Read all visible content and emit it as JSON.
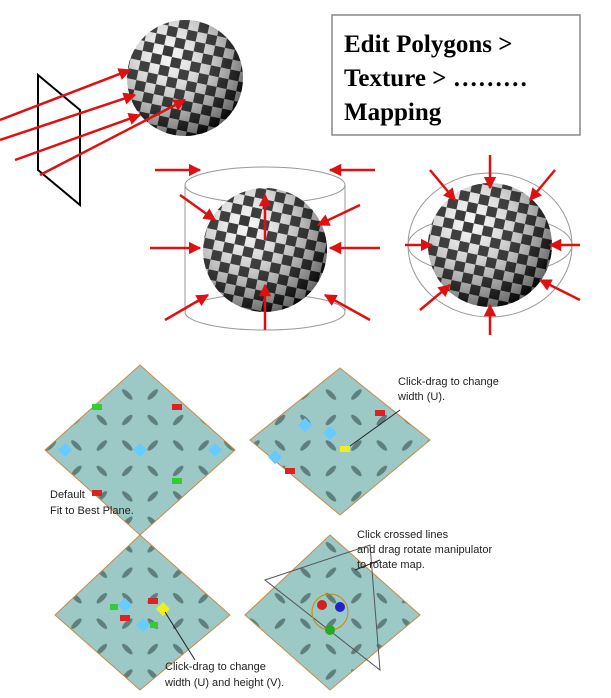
{
  "title_box": {
    "lines": [
      "Edit Polygons >",
      "Texture > ………",
      "Mapping"
    ]
  },
  "annotations": [
    {
      "lines": [
        "Click-drag to change",
        "width (U)."
      ]
    },
    {
      "lines": [
        "Default",
        "Fit to Best Plane."
      ]
    },
    {
      "lines": [
        "Click crossed lines",
        "and drag rotate manipulator",
        "to rotate map."
      ]
    },
    {
      "lines": [
        "Click-drag to change",
        "width (U) and height (V)."
      ]
    }
  ]
}
